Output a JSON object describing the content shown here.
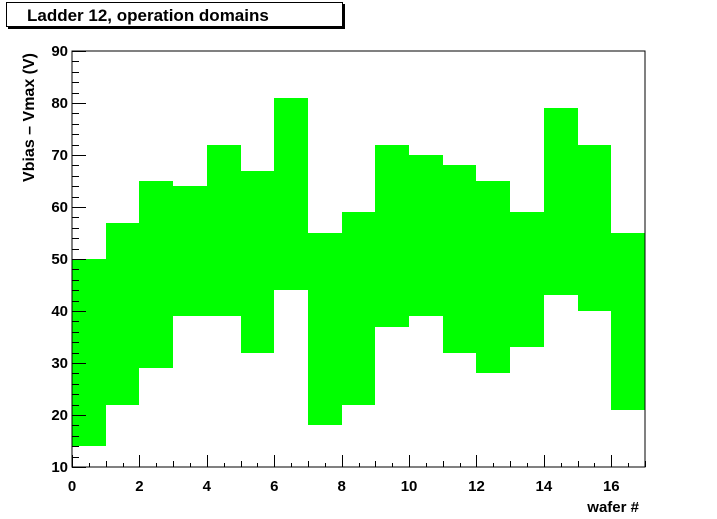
{
  "chart_data": {
    "type": "bar",
    "title": "Ladder 12, operation domains",
    "xlabel": "wafer #",
    "ylabel": "Vbias – Vmax (V)",
    "xlim": [
      0,
      17
    ],
    "ylim": [
      10,
      90
    ],
    "xticks": [
      "0",
      "2",
      "4",
      "6",
      "8",
      "10",
      "12",
      "14",
      "16"
    ],
    "yticks": [
      "10",
      "20",
      "30",
      "40",
      "50",
      "60",
      "70",
      "80",
      "90"
    ],
    "grid": false,
    "bar_color": "#00ff00",
    "bins": [
      {
        "wafer": 0,
        "low": 14,
        "high": 50
      },
      {
        "wafer": 1,
        "low": 22,
        "high": 57
      },
      {
        "wafer": 2,
        "low": 29,
        "high": 65
      },
      {
        "wafer": 3,
        "low": 39,
        "high": 64
      },
      {
        "wafer": 4,
        "low": 39,
        "high": 72
      },
      {
        "wafer": 5,
        "low": 32,
        "high": 67
      },
      {
        "wafer": 6,
        "low": 44,
        "high": 81
      },
      {
        "wafer": 7,
        "low": 18,
        "high": 55
      },
      {
        "wafer": 8,
        "low": 22,
        "high": 59
      },
      {
        "wafer": 9,
        "low": 37,
        "high": 72
      },
      {
        "wafer": 10,
        "low": 39,
        "high": 70
      },
      {
        "wafer": 11,
        "low": 32,
        "high": 68
      },
      {
        "wafer": 12,
        "low": 28,
        "high": 65
      },
      {
        "wafer": 13,
        "low": 33,
        "high": 59
      },
      {
        "wafer": 14,
        "low": 43,
        "high": 79
      },
      {
        "wafer": 15,
        "low": 40,
        "high": 72
      },
      {
        "wafer": 16,
        "low": 21,
        "high": 55
      }
    ]
  }
}
